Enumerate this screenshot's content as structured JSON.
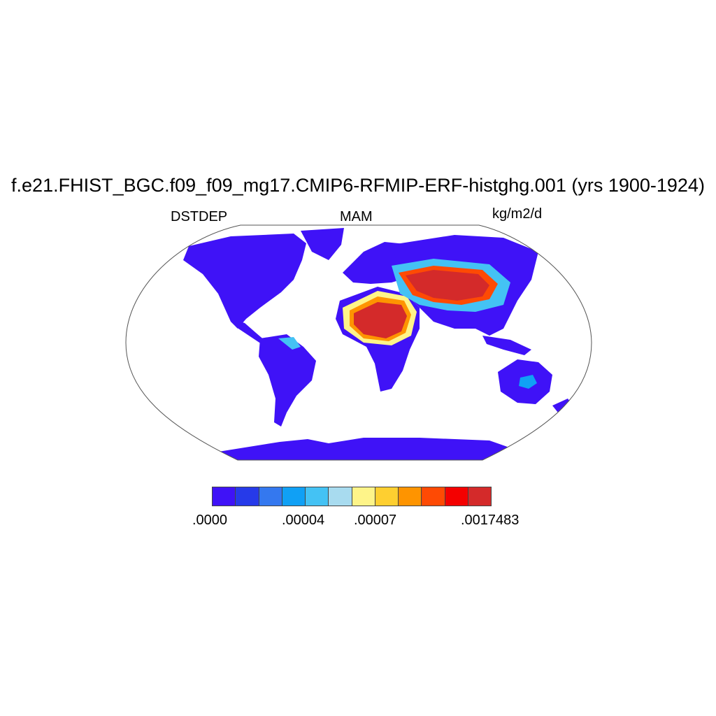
{
  "title": "f.e21.FHIST_BGC.f09_f09_mg17.CMIP6-RFMIP-ERF-histghg.001 (yrs 1900-1924)",
  "variable": "DSTDEP",
  "season": "MAM",
  "units": "kg/m2/d",
  "colorbar": {
    "colors": [
      "#3f12f7",
      "#263ae9",
      "#3478ef",
      "#10a0f5",
      "#44c2f4",
      "#a8dbef",
      "#fef489",
      "#fecf30",
      "#fe9400",
      "#fe4a04",
      "#f40000",
      "#d42a2a"
    ],
    "labels": [
      ".0000",
      ".00004",
      ".00007",
      ".0017483"
    ]
  },
  "colors": {
    "ocean": "#ffffff",
    "land_low": "#3f12f7",
    "dust_high": "#d42a2a"
  }
}
